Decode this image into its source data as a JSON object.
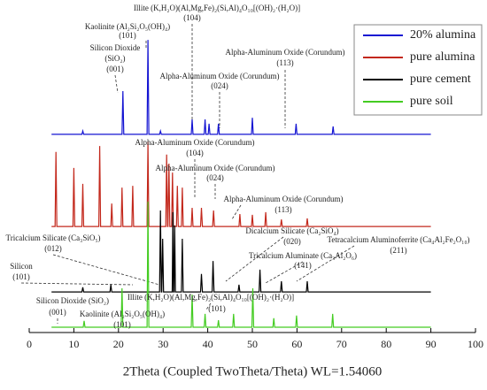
{
  "chart_data": {
    "type": "line",
    "x_label": "2Theta (Coupled TwoTheta/Theta) WL=1.54060",
    "xlim": [
      0,
      100
    ],
    "xticks": [
      0,
      10,
      20,
      30,
      40,
      50,
      60,
      70,
      80,
      90,
      100
    ],
    "ylim": [
      0,
      100
    ],
    "legend": "upper right",
    "series": [
      {
        "name": "20% alumina",
        "color": "#1414d2",
        "x": [
          5,
          11.8,
          12,
          12.2,
          20.8,
          21,
          21.2,
          26.4,
          26.6,
          26.8,
          29.2,
          29.4,
          29.6,
          36.3,
          36.5,
          36.7,
          39.2,
          39.4,
          39.6,
          40.1,
          40.3,
          40.5,
          42.2,
          42.4,
          42.6,
          49.8,
          50,
          50.2,
          59.6,
          59.8,
          60,
          67.9,
          68.1,
          68.3,
          90
        ],
        "values": [
          59.6,
          59.6,
          60.6,
          59.6,
          59.6,
          72.6,
          59.6,
          59.6,
          88.0,
          59.6,
          59.6,
          60.6,
          59.6,
          59.6,
          64.1,
          59.6,
          59.6,
          64.1,
          59.6,
          59.6,
          62.8,
          59.6,
          59.6,
          62.8,
          59.6,
          59.6,
          64.6,
          59.6,
          59.6,
          62.8,
          59.6,
          59.6,
          62.0,
          59.6,
          59.6
        ]
      },
      {
        "name": "pure alumina",
        "color": "#c3281c",
        "x": [
          5,
          5.8,
          6,
          6.2,
          9.8,
          10,
          10.2,
          11.8,
          12,
          12.2,
          15.6,
          15.8,
          16,
          18.3,
          18.5,
          18.7,
          20.6,
          20.8,
          21,
          23,
          23.2,
          23.4,
          26.4,
          26.6,
          26.8,
          30.6,
          30.8,
          31,
          31.1,
          31.3,
          31.5,
          31.9,
          32.1,
          32.3,
          33,
          33.2,
          33.4,
          34.1,
          34.3,
          34.5,
          36.3,
          36.5,
          36.7,
          38.4,
          38.6,
          38.8,
          41.1,
          41.3,
          41.5,
          47,
          47.2,
          47.4,
          49.8,
          50,
          50.2,
          52.8,
          53,
          53.2,
          56.3,
          56.5,
          56.7,
          62.1,
          62.3,
          62.5,
          90
        ],
        "values": [
          31.9,
          31.9,
          54.3,
          31.9,
          31.9,
          49.5,
          31.9,
          31.9,
          44.7,
          31.9,
          31.9,
          56.1,
          31.9,
          31.9,
          38.8,
          31.9,
          31.9,
          43.6,
          31.9,
          31.9,
          44.1,
          31.9,
          31.9,
          57.4,
          31.9,
          31.9,
          53.5,
          31.9,
          31.9,
          50.8,
          31.9,
          31.9,
          48.1,
          31.9,
          31.9,
          44.1,
          31.9,
          31.9,
          43.6,
          31.9,
          31.9,
          37.5,
          31.9,
          31.9,
          37.5,
          31.9,
          31.9,
          36.7,
          31.9,
          31.9,
          35.6,
          31.9,
          31.9,
          35.4,
          31.9,
          31.9,
          36.2,
          31.9,
          31.9,
          34.0,
          31.9,
          31.9,
          34.3,
          31.9,
          31.9
        ]
      },
      {
        "name": "pure cement",
        "color": "#000000",
        "x": [
          5,
          11.8,
          12,
          12.2,
          18.1,
          18.3,
          18.5,
          29.2,
          29.4,
          29.6,
          29.7,
          29.9,
          30.1,
          32.05,
          32.2,
          32.35,
          32.45,
          32.6,
          32.75,
          34.1,
          34.3,
          34.5,
          38.4,
          38.6,
          38.8,
          41,
          41.2,
          41.4,
          46.8,
          47,
          47.2,
          51.5,
          51.7,
          51.9,
          56.3,
          56.5,
          56.7,
          62.1,
          62.3,
          62.5,
          90
        ],
        "values": [
          12.2,
          12.2,
          13.6,
          12.2,
          12.2,
          14.4,
          12.2,
          12.2,
          36.7,
          12.2,
          12.2,
          28.2,
          12.2,
          12.2,
          36.2,
          12.2,
          12.2,
          32.2,
          12.2,
          12.2,
          28.2,
          12.2,
          12.2,
          17.6,
          12.2,
          12.2,
          21.5,
          12.2,
          12.2,
          14.4,
          12.2,
          12.2,
          18.9,
          12.2,
          12.2,
          15.4,
          12.2,
          12.2,
          15.4,
          12.2,
          12.2
        ]
      },
      {
        "name": "pure soil",
        "color": "#44cc22",
        "x": [
          5,
          12.1,
          12.3,
          12.5,
          20.6,
          20.8,
          21,
          26.4,
          26.6,
          26.8,
          36.3,
          36.5,
          36.7,
          39.2,
          39.4,
          39.6,
          42.2,
          42.4,
          42.6,
          45.6,
          45.8,
          46,
          49.9,
          50.1,
          50.3,
          54.6,
          54.8,
          55,
          59.7,
          59.9,
          60.1,
          67.8,
          68,
          68.2,
          90
        ],
        "values": [
          1.6,
          1.6,
          3.5,
          1.6,
          1.6,
          13.3,
          1.6,
          1.6,
          39.4,
          1.6,
          1.6,
          11.4,
          1.6,
          1.6,
          5.6,
          1.6,
          1.6,
          3.7,
          1.6,
          1.6,
          5.6,
          1.6,
          1.6,
          13.3,
          1.6,
          1.6,
          4.3,
          1.6,
          1.6,
          5.1,
          1.6,
          1.6,
          5.6,
          1.6,
          1.6
        ]
      }
    ],
    "annotations": [
      "Illite (K,H₂O)(Al,Mg,Fe)₂(Si,Al)₄O₁₀[(OH)₂·(H₂O)]",
      "(104)",
      "Kaolinite (Al₂Si₂O₅(OH)₄)",
      "(101)",
      "Silicon Dioxide",
      "(SiO₂)",
      "(001)",
      "Alpha-Aluminum Oxide (Corundum)",
      "(113)",
      "Alpha-Aluminum Oxide (Corundum)",
      "(024)",
      "Alpha-Aluminum Oxide (Corundum)",
      "(104)",
      "Alpha-Aluminum Oxide (Corundum)",
      "(024)",
      "Alpha-Aluminum Oxide (Corundum)",
      "(113)",
      "Tricalcium Silicate (Ca₃SiO₅)",
      "(012)",
      "Dicalcium Silicate (Ca₂SiO₄)",
      "(020)",
      "Tetracalcium Aluminoferrite (Ca₄Al₂Fe₂O₁₀)",
      "(211)",
      "Tricalcium Aluminate (Ca₃Al₂O₆)",
      "(141)",
      "Silicon",
      "(101)",
      "Silicon Dioxide (SiO₂)",
      "(001)",
      "Illite (K,H₂O)(Al,Mg,Fe)₂(Si,Al)₄O₁₀[(OH)₂·(H₂O)]",
      "(101)",
      "Kaolinite (Al₂Si₂O₅(OH)₄)",
      "(101)"
    ]
  }
}
